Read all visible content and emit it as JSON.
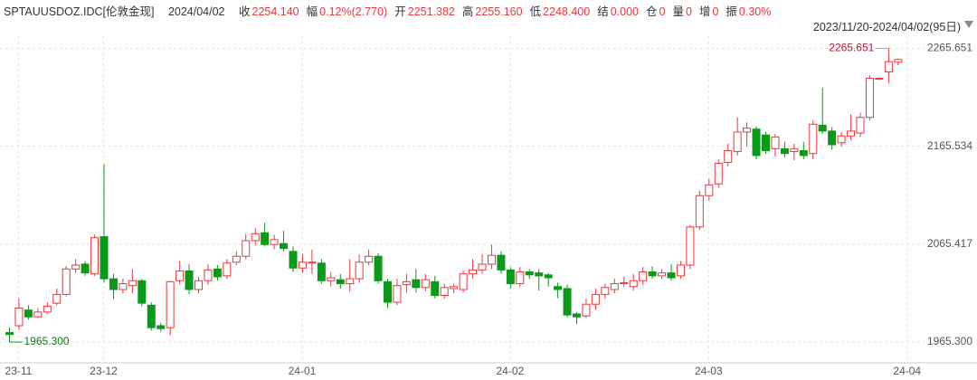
{
  "header": {
    "symbol": "SPTAUUSDOZ.IDC[伦敦金现]",
    "date": "2024/04/02",
    "fields": [
      {
        "label": "收",
        "value": "2254.140"
      },
      {
        "label": "幅",
        "value": "0.12%(2.770)"
      },
      {
        "label": "开",
        "value": "2251.382"
      },
      {
        "label": "高",
        "value": "2255.160"
      },
      {
        "label": "低",
        "value": "2248.400"
      },
      {
        "label": "结",
        "value": "0.000"
      },
      {
        "label": "仓",
        "value": "0"
      },
      {
        "label": "量",
        "value": "0"
      },
      {
        "label": "增",
        "value": "0"
      },
      {
        "label": "振",
        "value": "0.30%"
      }
    ],
    "range": "2023/11/20-2024/04/02(95日)"
  },
  "chart_data": {
    "type": "candlestick",
    "up_color": "#e8383d",
    "down_color": "#0a9a1a",
    "grid": true,
    "open": [
      1975,
      1982,
      1998,
      1991,
      1996,
      2005,
      2014,
      2040,
      2045,
      2035,
      2073,
      2030,
      2019,
      2023,
      2028,
      2003,
      1982,
      1980,
      2028,
      2038,
      2019,
      2028,
      2040,
      2033,
      2047,
      2053,
      2069,
      2077,
      2065,
      2066,
      2058,
      2041,
      2046,
      2046,
      2028,
      2029,
      2025,
      2030,
      2047,
      2053,
      2027,
      2006,
      2024,
      2029,
      2021,
      2027,
      2013,
      2020,
      2019,
      2035,
      2039,
      2045,
      2054,
      2039,
      2025,
      2037,
      2036,
      2034,
      2022,
      2020,
      1994,
      1992,
      2004,
      2014,
      2019,
      2025,
      2022,
      2028,
      2037,
      2033,
      2036,
      2033,
      2044,
      2083,
      2115,
      2127,
      2149,
      2160,
      2180,
      2183,
      2177,
      2163,
      2163,
      2160,
      2161,
      2158,
      2187,
      2181,
      2169,
      2176,
      2179,
      2195,
      2234,
      2241.5,
      2251.382
    ],
    "high": [
      1980,
      2010,
      2003,
      2000,
      2006,
      2020,
      2043,
      2050,
      2048,
      2075,
      2147,
      2035,
      2030,
      2040,
      2030,
      2006,
      1985,
      2028,
      2048,
      2045,
      2032,
      2045,
      2044,
      2050,
      2058,
      2076,
      2082,
      2087,
      2075,
      2079,
      2063,
      2055,
      2060,
      2050,
      2037,
      2035,
      2050,
      2055,
      2060,
      2056,
      2030,
      2030,
      2035,
      2040,
      2035,
      2033,
      2025,
      2025,
      2038,
      2050,
      2055,
      2065,
      2058,
      2042,
      2042,
      2040,
      2040,
      2036,
      2026,
      2024,
      1996,
      2010,
      2020,
      2025,
      2030,
      2032,
      2035,
      2042,
      2043,
      2040,
      2045,
      2048,
      2085,
      2120,
      2132,
      2152,
      2168,
      2195,
      2190,
      2186,
      2180,
      2178,
      2170,
      2168,
      2170,
      2192,
      2225,
      2185,
      2180,
      2198,
      2200,
      2238,
      2236,
      2265.651,
      2255.16
    ],
    "low": [
      1965.3,
      1978,
      1988,
      1990,
      1994,
      2003,
      2012,
      2036,
      2033,
      2033,
      2026,
      2009,
      2015,
      2015,
      2002,
      1977,
      1976,
      1972,
      2025,
      2014,
      2015,
      2024,
      2028,
      2030,
      2044,
      2050,
      2064,
      2063,
      2060,
      2058,
      2037,
      2036,
      2035,
      2025,
      2022,
      2020,
      2017,
      2026,
      2044,
      2025,
      2000,
      2003,
      2016,
      2016,
      2017,
      2010,
      2010,
      2015,
      2016,
      2030,
      2035,
      2040,
      2035,
      2020,
      2022,
      2030,
      2018,
      2022,
      2010,
      1990,
      1984,
      1990,
      1998,
      2010,
      2015,
      2022,
      2018,
      2024,
      2030,
      2030,
      2028,
      2030,
      2040,
      2080,
      2110,
      2123,
      2145,
      2156,
      2165,
      2152,
      2158,
      2155,
      2154,
      2151,
      2152,
      2152,
      2178,
      2162,
      2165,
      2172,
      2175,
      2192,
      2233,
      2230,
      2248.4
    ],
    "close": [
      1973,
      2000,
      1991,
      1996,
      2002,
      2014,
      2040,
      2044,
      2036,
      2072,
      2030,
      2019,
      2025,
      2028,
      2005,
      1980,
      1979,
      2027,
      2038,
      2019,
      2028,
      2039,
      2032,
      2046,
      2053,
      2069,
      2076,
      2065,
      2070,
      2061,
      2041,
      2047,
      2047,
      2028,
      2031,
      2025,
      2030,
      2047,
      2053,
      2028,
      2006,
      2023,
      2027,
      2021,
      2029,
      2013,
      2021,
      2022,
      2035,
      2039,
      2045,
      2054,
      2039,
      2025,
      2037,
      2034,
      2033,
      2031,
      2019,
      1993,
      1991,
      2004,
      2014,
      2021,
      2025,
      2026,
      2028,
      2037,
      2033,
      2036,
      2031,
      2044,
      2083,
      2115,
      2126,
      2148,
      2161,
      2180,
      2184,
      2156,
      2161,
      2175,
      2158,
      2163,
      2156,
      2188,
      2181,
      2167,
      2176,
      2181,
      2195,
      2235,
      2235,
      2252,
      2254.14
    ],
    "ylim": [
      1945,
      2278
    ],
    "yticks": [
      {
        "value": 1965.3,
        "label": "1965.300"
      },
      {
        "value": 2065.417,
        "label": "2065.417"
      },
      {
        "value": 2165.534,
        "label": "2165.534"
      },
      {
        "value": 2265.651,
        "label": "2265.651"
      }
    ],
    "xticks": [
      {
        "value": 1,
        "label": "23-11"
      },
      {
        "value": 10,
        "label": "23-12"
      },
      {
        "value": 31,
        "label": "24-01"
      },
      {
        "value": 53,
        "label": "24-02"
      },
      {
        "value": 74,
        "label": "24-03"
      },
      {
        "value": 95,
        "label": "24-04"
      }
    ],
    "annotations": {
      "max": "2265.651",
      "min": "1965.300"
    }
  }
}
